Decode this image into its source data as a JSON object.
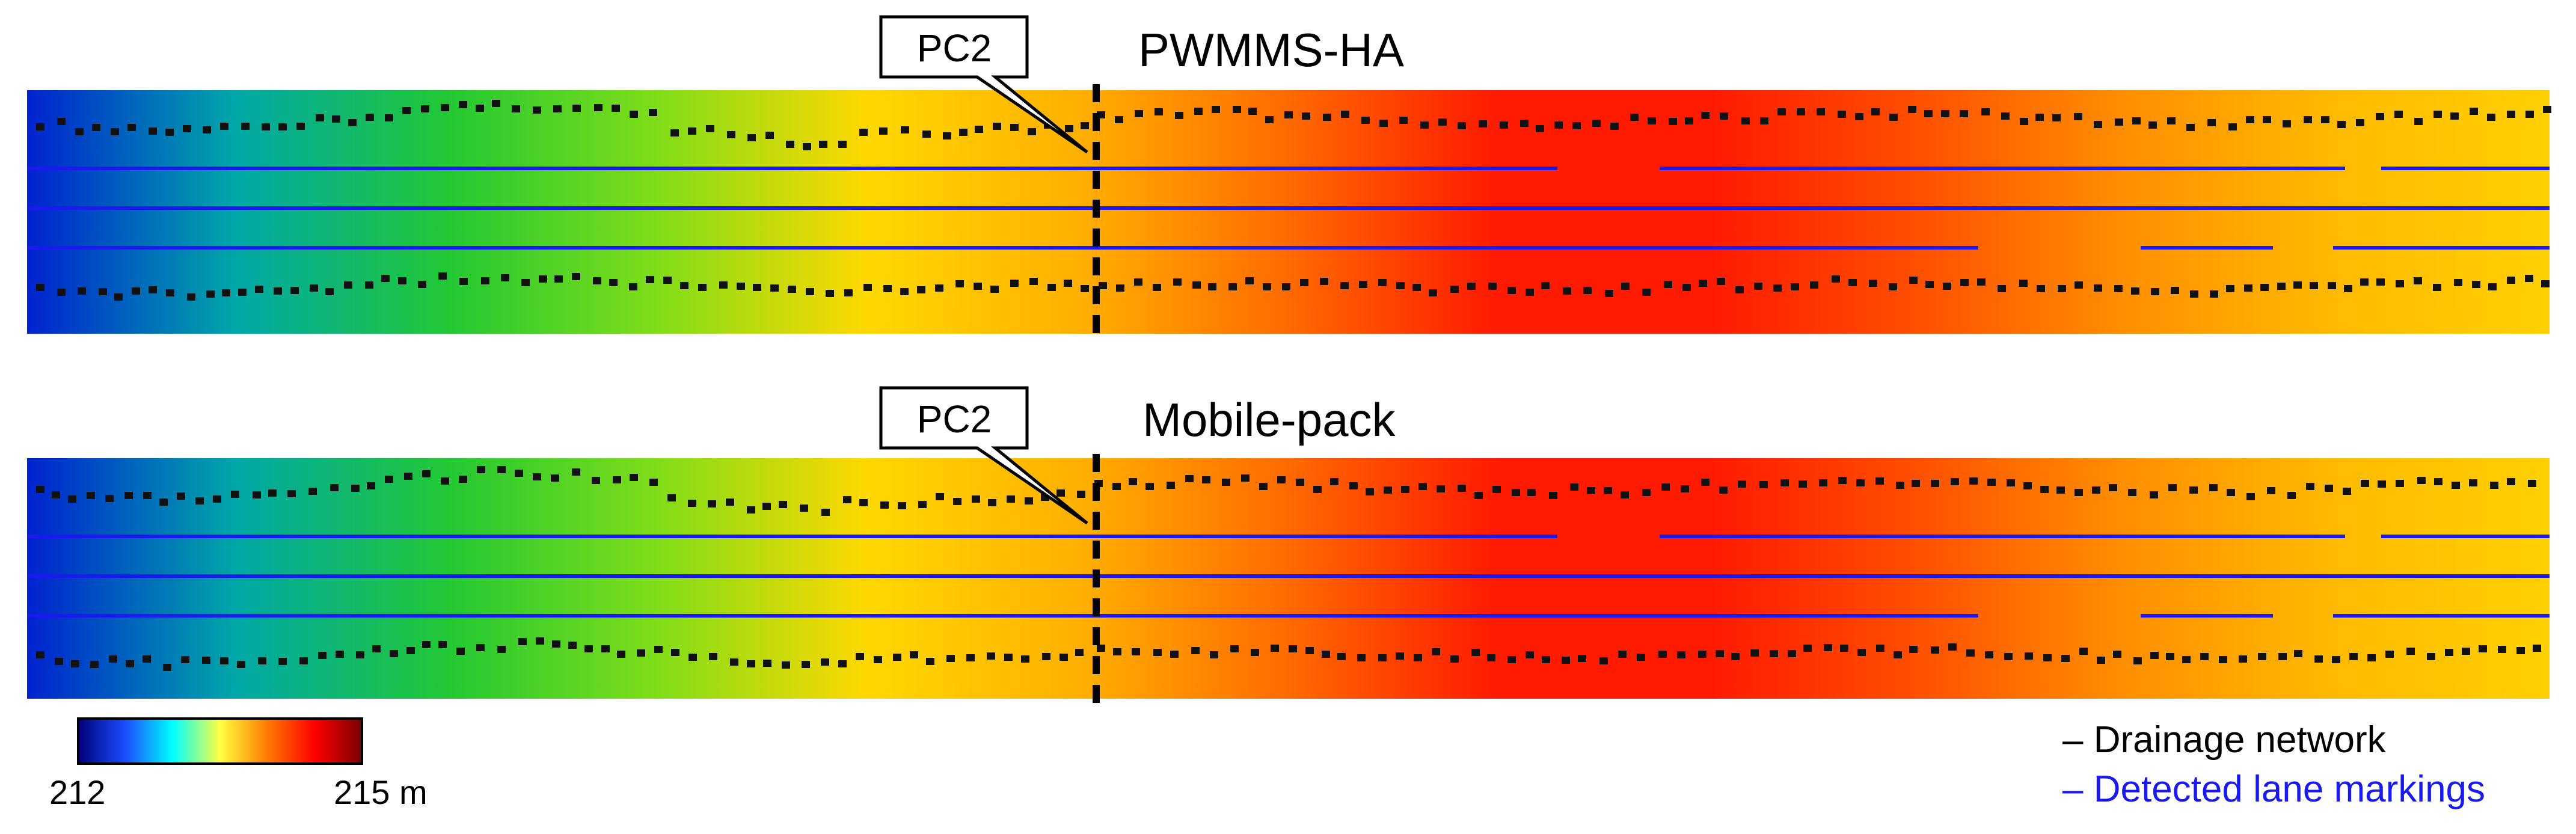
{
  "panels": [
    {
      "title": "PWMMS-HA",
      "callout": "PC2"
    },
    {
      "title": "Mobile-pack",
      "callout": "PC2"
    }
  ],
  "colorbar": {
    "min_label": "212",
    "max_label": "215 m",
    "stops": [
      "#00007a",
      "#1a4dff",
      "#00ffff",
      "#ffff40",
      "#ff7a00",
      "#ff0000",
      "#7a0000"
    ]
  },
  "legend": [
    {
      "text": "– Drainage network",
      "color": "#000000"
    },
    {
      "text": "– Detected lane markings",
      "color": "#1a1aee"
    }
  ],
  "elevation_gradient": [
    "#0022d0",
    "#00a8a8",
    "#22c833",
    "#80dd18",
    "#ffd800",
    "#ffb000",
    "#ff6a00",
    "#ff1a00",
    "#ff1a00",
    "#ff5000",
    "#ff9000",
    "#ffbb00",
    "#ffd000"
  ],
  "colors": {
    "drain": "#111111",
    "lane": "#1a1aee",
    "pc2_line": "#000000"
  }
}
